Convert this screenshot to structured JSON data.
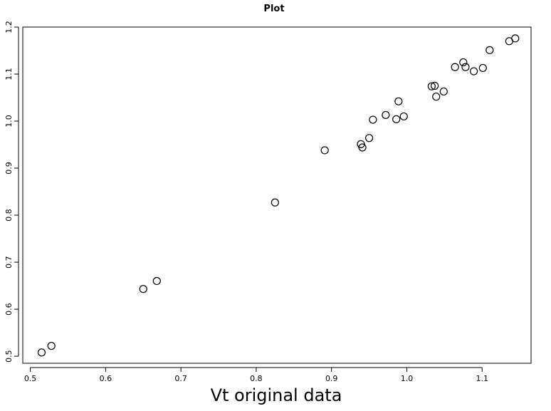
{
  "chart_data": {
    "type": "scatter",
    "title": "Plot",
    "xlabel": "Vt original data",
    "ylabel": "",
    "xlim": [
      0.49,
      1.165
    ],
    "ylim": [
      0.485,
      1.2
    ],
    "xticks": [
      0.5,
      0.6,
      0.7,
      0.8,
      0.9,
      1.0,
      1.1
    ],
    "xtick_labels": [
      "0.5",
      "0.6",
      "0.7",
      "0.8",
      "0.9",
      "1.0",
      "1.1"
    ],
    "yticks": [
      0.5,
      0.6,
      0.7,
      0.8,
      0.9,
      1.0,
      1.1,
      1.2
    ],
    "ytick_labels": [
      "0.5",
      "0.6",
      "0.7",
      "0.8",
      "0.9",
      "1.0",
      "1.1",
      "1.2"
    ],
    "grid": false,
    "marker": "open-circle",
    "series": [
      {
        "points": [
          {
            "x": 0.515,
            "y": 0.508
          },
          {
            "x": 0.528,
            "y": 0.522
          },
          {
            "x": 0.65,
            "y": 0.643
          },
          {
            "x": 0.668,
            "y": 0.66
          },
          {
            "x": 0.825,
            "y": 0.827
          },
          {
            "x": 0.891,
            "y": 0.938
          },
          {
            "x": 0.939,
            "y": 0.951
          },
          {
            "x": 0.941,
            "y": 0.944
          },
          {
            "x": 0.95,
            "y": 0.964
          },
          {
            "x": 0.955,
            "y": 1.003
          },
          {
            "x": 0.972,
            "y": 1.013
          },
          {
            "x": 0.986,
            "y": 1.004
          },
          {
            "x": 0.989,
            "y": 1.042
          },
          {
            "x": 0.996,
            "y": 1.01
          },
          {
            "x": 1.033,
            "y": 1.074
          },
          {
            "x": 1.037,
            "y": 1.075
          },
          {
            "x": 1.039,
            "y": 1.052
          },
          {
            "x": 1.049,
            "y": 1.063
          },
          {
            "x": 1.064,
            "y": 1.115
          },
          {
            "x": 1.075,
            "y": 1.125
          },
          {
            "x": 1.078,
            "y": 1.115
          },
          {
            "x": 1.089,
            "y": 1.106
          },
          {
            "x": 1.101,
            "y": 1.113
          },
          {
            "x": 1.11,
            "y": 1.151
          },
          {
            "x": 1.136,
            "y": 1.17
          },
          {
            "x": 1.144,
            "y": 1.176
          }
        ]
      }
    ]
  }
}
